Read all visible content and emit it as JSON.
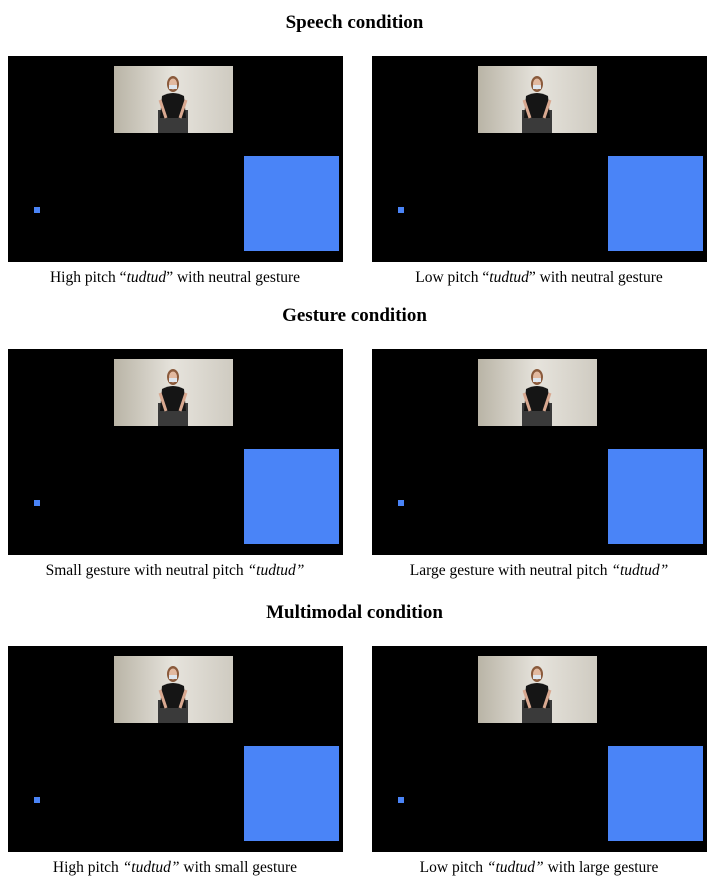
{
  "sections": [
    {
      "title": "Speech condition",
      "panels": [
        {
          "caption": [
            {
              "text": "High pitch “"
            },
            {
              "text": "tudtud",
              "italic": true
            },
            {
              "text": "” with neutral gesture"
            }
          ]
        },
        {
          "caption": [
            {
              "text": "Low pitch “"
            },
            {
              "text": "tudtud",
              "italic": true
            },
            {
              "text": "” with neutral gesture"
            }
          ]
        }
      ]
    },
    {
      "title": "Gesture condition",
      "panels": [
        {
          "caption": [
            {
              "text": "Small gesture with neutral pitch "
            },
            {
              "text": "“tudtud”",
              "italic": true
            }
          ]
        },
        {
          "caption": [
            {
              "text": "Large gesture with neutral pitch "
            },
            {
              "text": "“tudtud”",
              "italic": true
            }
          ]
        }
      ]
    },
    {
      "title": "Multimodal condition",
      "panels": [
        {
          "caption": [
            {
              "text": "High pitch "
            },
            {
              "text": "“tudtud”",
              "italic": true
            },
            {
              "text": " with small gesture"
            }
          ]
        },
        {
          "caption": [
            {
              "text": "Low pitch "
            },
            {
              "text": "“tudtud”",
              "italic": true
            },
            {
              "text": " with large gesture"
            }
          ]
        }
      ]
    }
  ]
}
